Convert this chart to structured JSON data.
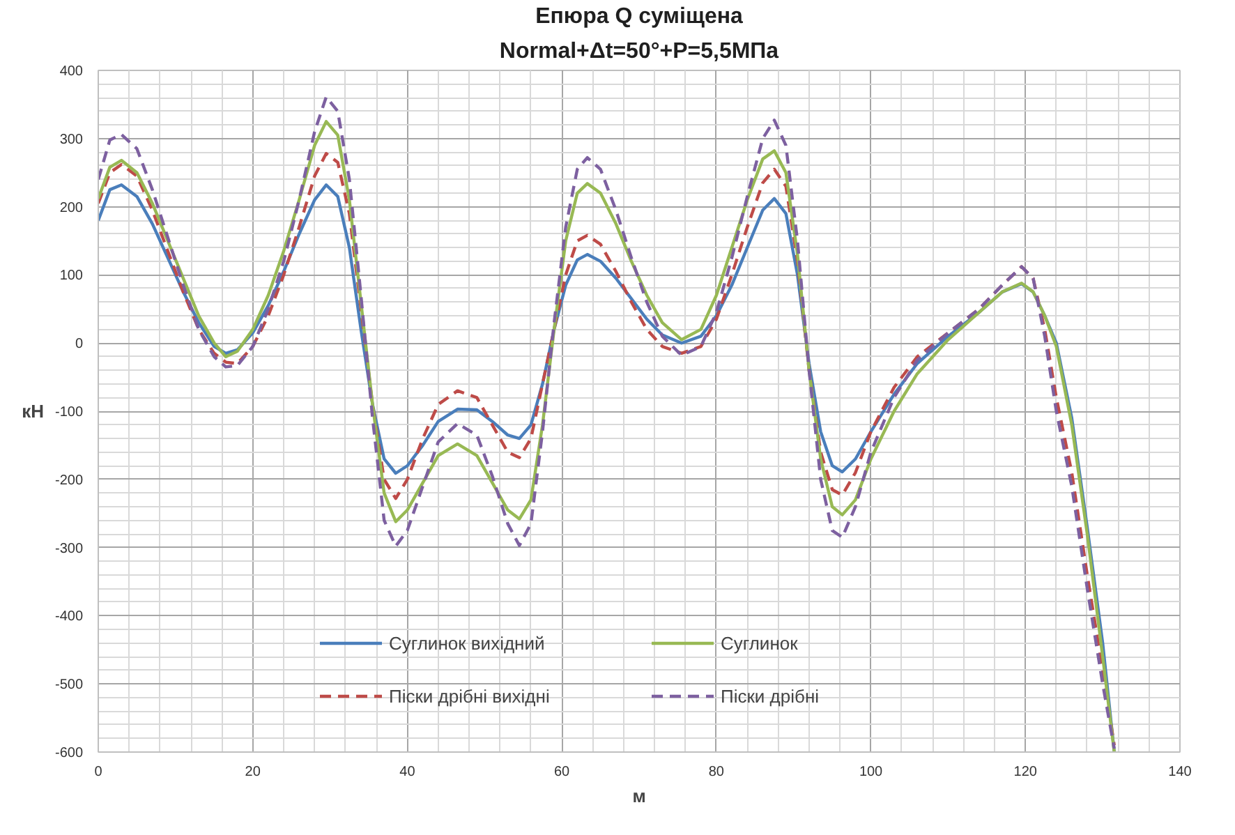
{
  "chart_data": {
    "type": "line",
    "title": "Епюра Q суміщена",
    "subtitle": "Normal+Δt=50°+P=5,5МПа",
    "xlabel": "м",
    "ylabel": "кН",
    "x": [
      0,
      1.5,
      3,
      5,
      7,
      9,
      11,
      13,
      15,
      16.5,
      18,
      20,
      22,
      24,
      26,
      28,
      29.5,
      31,
      32.5,
      34,
      35.5,
      37,
      38.5,
      40,
      42,
      44,
      46.5,
      49,
      51,
      53,
      54.5,
      56,
      57.5,
      59,
      60.5,
      62,
      63.3,
      65,
      67,
      69,
      71,
      73,
      75.5,
      78,
      80,
      82,
      84,
      86,
      87.5,
      89,
      90.5,
      92,
      93.5,
      95,
      96.3,
      98,
      100,
      103,
      106,
      110,
      114,
      117,
      119.5,
      121,
      122.5,
      124,
      126,
      128,
      130,
      131.5
    ],
    "series": [
      {
        "name": "Суглинок вихідний",
        "color": "#4a7ebb",
        "line_style": "solid",
        "values": [
          180,
          225,
          232,
          215,
          175,
          125,
          75,
          30,
          -5,
          -15,
          -10,
          15,
          55,
          105,
          160,
          210,
          232,
          215,
          140,
          20,
          -90,
          -170,
          -191,
          -180,
          -150,
          -115,
          -97,
          -98,
          -115,
          -135,
          -140,
          -120,
          -60,
          20,
          85,
          122,
          130,
          120,
          95,
          65,
          35,
          12,
          0,
          10,
          40,
          85,
          140,
          195,
          212,
          190,
          100,
          -30,
          -130,
          -180,
          -189,
          -170,
          -130,
          -75,
          -30,
          10,
          45,
          75,
          87,
          75,
          40,
          0,
          -110,
          -270,
          -440,
          -600
        ]
      },
      {
        "name": "Піски дрібні вихідні",
        "color": "#be4b48",
        "line_style": "dashed",
        "values": [
          205,
          250,
          262,
          245,
          195,
          135,
          75,
          20,
          -15,
          -28,
          -30,
          -5,
          40,
          100,
          170,
          245,
          278,
          265,
          190,
          50,
          -90,
          -200,
          -228,
          -200,
          -140,
          -90,
          -70,
          -80,
          -120,
          -160,
          -168,
          -140,
          -60,
          20,
          100,
          150,
          158,
          145,
          105,
          60,
          20,
          -5,
          -15,
          -5,
          35,
          100,
          170,
          235,
          255,
          230,
          120,
          -40,
          -160,
          -215,
          -223,
          -190,
          -130,
          -65,
          -20,
          15,
          50,
          85,
          112,
          95,
          20,
          -80,
          -190,
          -340,
          -480,
          -590
        ]
      },
      {
        "name": "Суглинок",
        "color": "#98b954",
        "line_style": "solid",
        "values": [
          212,
          258,
          268,
          250,
          205,
          150,
          95,
          40,
          0,
          -20,
          -12,
          20,
          70,
          135,
          210,
          290,
          325,
          305,
          210,
          60,
          -90,
          -220,
          -262,
          -245,
          -205,
          -165,
          -148,
          -165,
          -205,
          -245,
          -258,
          -230,
          -120,
          20,
          150,
          220,
          234,
          220,
          175,
          120,
          70,
          30,
          5,
          20,
          70,
          140,
          210,
          270,
          282,
          250,
          130,
          -40,
          -170,
          -240,
          -252,
          -230,
          -170,
          -100,
          -45,
          5,
          45,
          75,
          88,
          75,
          40,
          -5,
          -120,
          -280,
          -460,
          -600
        ]
      },
      {
        "name": "Піски дрібні",
        "color": "#7d60a0",
        "line_style": "dashed",
        "values": [
          240,
          298,
          306,
          285,
          225,
          155,
          85,
          20,
          -20,
          -35,
          -33,
          -5,
          50,
          120,
          210,
          310,
          361,
          340,
          240,
          70,
          -110,
          -260,
          -298,
          -275,
          -210,
          -145,
          -118,
          -135,
          -195,
          -265,
          -297,
          -265,
          -130,
          30,
          170,
          255,
          272,
          255,
          195,
          125,
          60,
          10,
          -18,
          -5,
          45,
          125,
          215,
          300,
          327,
          290,
          150,
          -40,
          -200,
          -275,
          -285,
          -240,
          -160,
          -80,
          -25,
          15,
          50,
          85,
          112,
          95,
          10,
          -100,
          -210,
          -360,
          -500,
          -595
        ]
      }
    ],
    "xlim": [
      0,
      140
    ],
    "xticks": [
      0,
      20,
      40,
      60,
      80,
      100,
      120,
      140
    ],
    "ylim": [
      -600,
      400
    ],
    "yticks": [
      -600,
      -500,
      -400,
      -300,
      -200,
      -100,
      0,
      100,
      200,
      300,
      400
    ],
    "grid": true,
    "legend": "bottom",
    "marker": "none"
  }
}
